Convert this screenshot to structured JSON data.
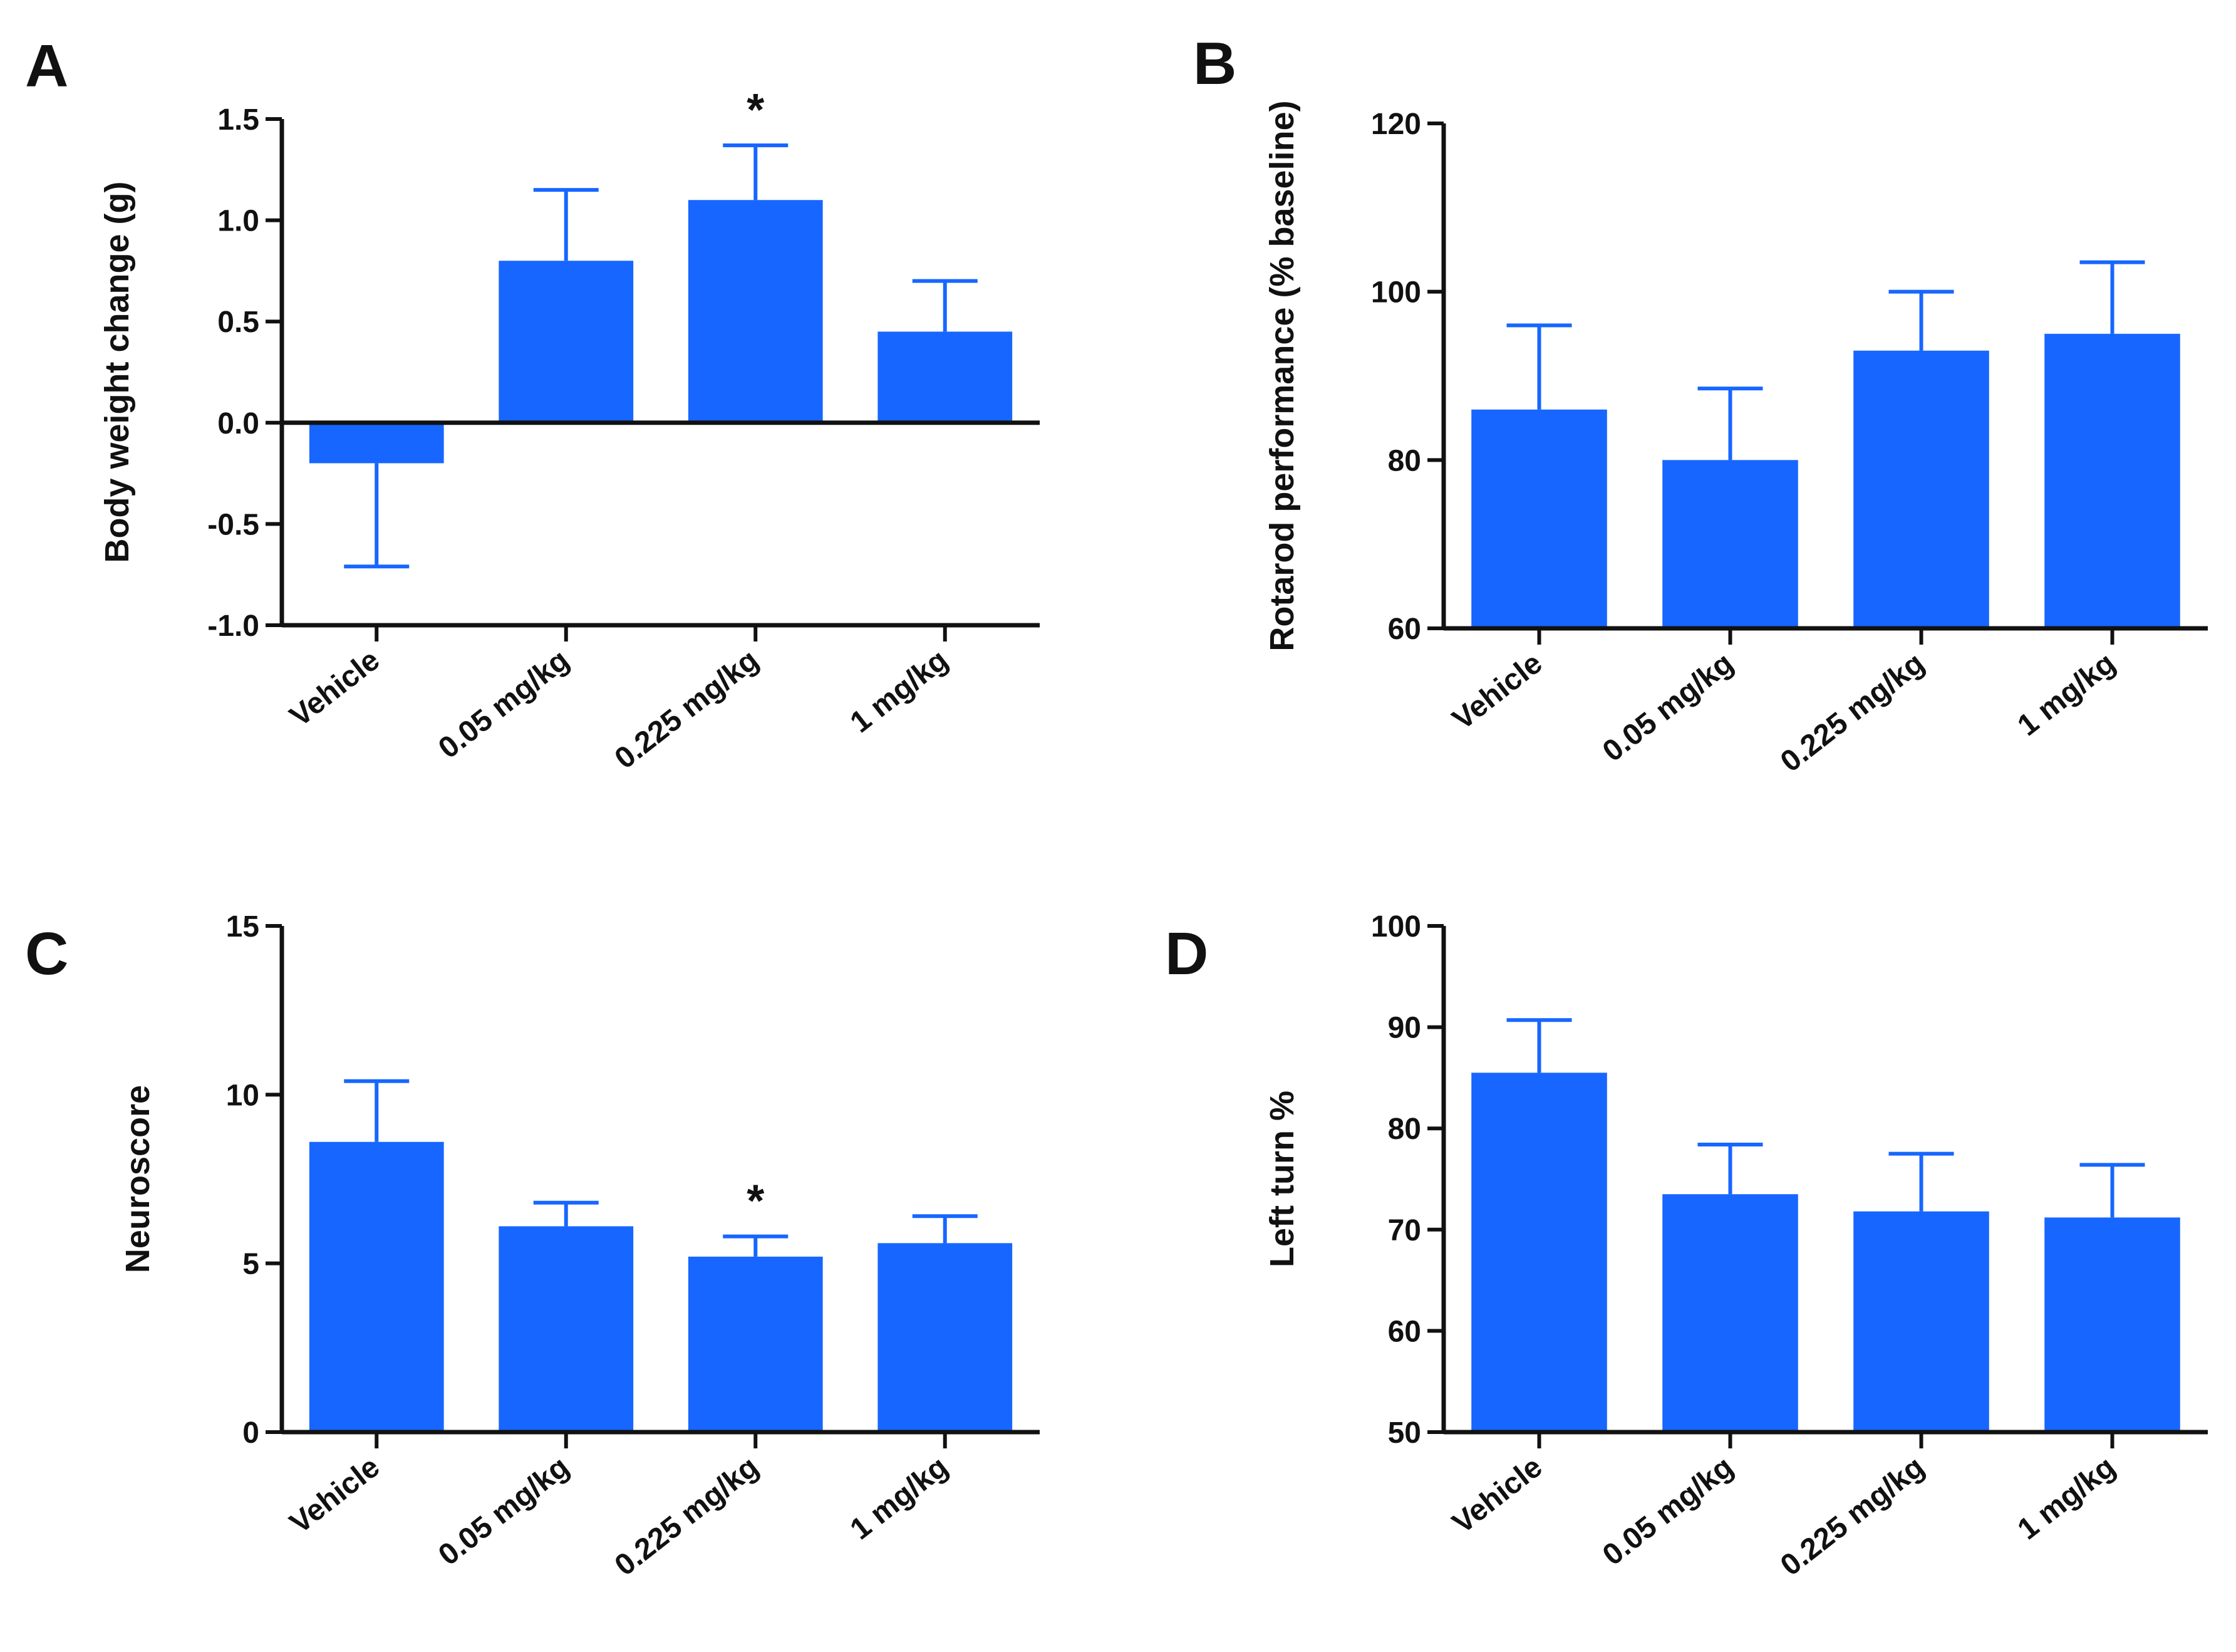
{
  "colors": {
    "bar": "#1766ff",
    "axis": "#111111"
  },
  "chart_data": [
    {
      "panel": "A",
      "type": "bar",
      "ylabel": "Body weight change (g)",
      "categories": [
        "Vehicle",
        "0.05 mg/kg",
        "0.225 mg/kg",
        "1 mg/kg"
      ],
      "values": [
        -0.2,
        0.8,
        1.1,
        0.45
      ],
      "error": [
        0.51,
        0.35,
        0.27,
        0.25
      ],
      "significance": [
        "",
        "",
        "*",
        ""
      ],
      "ylim": [
        -1.0,
        1.5
      ],
      "yticks": [
        "-1.0",
        "-0.5",
        "0.0",
        "0.5",
        "1.0",
        "1.5"
      ],
      "baseline_line": 0
    },
    {
      "panel": "B",
      "type": "bar",
      "ylabel": "Rotarod performance (% baseline)",
      "categories": [
        "Vehicle",
        "0.05 mg/kg",
        "0.225 mg/kg",
        "1 mg/kg"
      ],
      "values": [
        86,
        80,
        93,
        95
      ],
      "error": [
        10,
        8.5,
        7,
        8.5
      ],
      "significance": [
        "",
        "",
        "",
        ""
      ],
      "ylim": [
        60,
        120
      ],
      "yticks": [
        "60",
        "80",
        "100",
        "120"
      ]
    },
    {
      "panel": "C",
      "type": "bar",
      "ylabel": "Neuroscore",
      "categories": [
        "Vehicle",
        "0.05 mg/kg",
        "0.225 mg/kg",
        "1 mg/kg"
      ],
      "values": [
        8.6,
        6.1,
        5.2,
        5.6
      ],
      "error": [
        1.8,
        0.7,
        0.6,
        0.8
      ],
      "significance": [
        "",
        "",
        "*",
        ""
      ],
      "ylim": [
        0,
        15
      ],
      "yticks": [
        "0",
        "5",
        "10",
        "15"
      ]
    },
    {
      "panel": "D",
      "type": "bar",
      "ylabel": "Left turn %",
      "categories": [
        "Vehicle",
        "0.05 mg/kg",
        "0.225 mg/kg",
        "1 mg/kg"
      ],
      "values": [
        85.5,
        73.5,
        71.8,
        71.2
      ],
      "error": [
        5.2,
        4.9,
        5.7,
        5.2
      ],
      "significance": [
        "",
        "",
        "",
        ""
      ],
      "ylim": [
        50,
        100
      ],
      "yticks": [
        "50",
        "60",
        "70",
        "80",
        "90",
        "100"
      ]
    }
  ]
}
